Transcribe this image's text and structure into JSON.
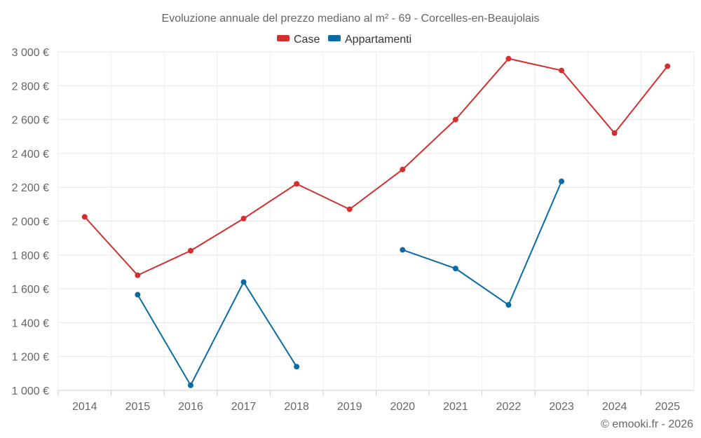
{
  "chart_data": {
    "type": "line",
    "title": "Evoluzione annuale del prezzo mediano al m² - 69 - Corcelles-en-Beaujolais",
    "xlabel": "",
    "ylabel": "",
    "categories": [
      "2014",
      "2015",
      "2016",
      "2017",
      "2018",
      "2019",
      "2020",
      "2021",
      "2022",
      "2023",
      "2024",
      "2025"
    ],
    "y_ticks": [
      1000,
      1200,
      1400,
      1600,
      1800,
      2000,
      2200,
      2400,
      2600,
      2800,
      3000
    ],
    "y_tick_labels": [
      "1 000 €",
      "1 200 €",
      "1 400 €",
      "1 600 €",
      "1 800 €",
      "2 000 €",
      "2 200 €",
      "2 400 €",
      "2 600 €",
      "2 800 €",
      "3 000 €"
    ],
    "ylim": [
      1000,
      3000
    ],
    "grid": true,
    "legend_position": "top-center",
    "series": [
      {
        "name": "Case",
        "color": "#d32f2f",
        "values": [
          2025,
          1680,
          1825,
          2015,
          2220,
          2070,
          2305,
          2600,
          2960,
          2890,
          2520,
          2915
        ]
      },
      {
        "name": "Appartamenti",
        "color": "#0a6ba3",
        "values": [
          null,
          1565,
          1030,
          1640,
          1140,
          null,
          1830,
          1720,
          1505,
          2235,
          null,
          null
        ]
      }
    ],
    "credit": "© emooki.fr - 2026"
  }
}
